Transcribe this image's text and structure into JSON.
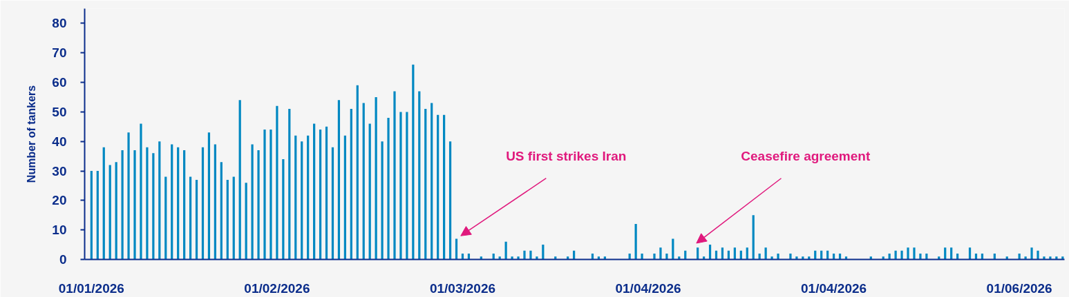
{
  "chart_data": {
    "type": "bar",
    "ylabel": "Number of tankers",
    "categories": [
      "01/01/2026",
      null,
      null,
      null,
      null,
      null,
      null,
      null,
      null,
      null,
      null,
      null,
      null,
      null,
      null,
      null,
      null,
      null,
      null,
      null,
      null,
      null,
      null,
      null,
      null,
      null,
      null,
      null,
      null,
      null,
      "01/02/2026",
      null,
      null,
      null,
      null,
      null,
      null,
      null,
      null,
      null,
      null,
      null,
      null,
      null,
      null,
      null,
      null,
      null,
      null,
      null,
      null,
      null,
      null,
      null,
      null,
      null,
      null,
      null,
      null,
      null,
      "01/03/2026",
      null,
      null,
      null,
      null,
      null,
      null,
      null,
      null,
      null,
      null,
      null,
      null,
      null,
      null,
      null,
      null,
      null,
      null,
      null,
      null,
      null,
      null,
      null,
      null,
      null,
      null,
      null,
      null,
      null,
      "01/04/2026",
      null,
      null,
      null,
      null,
      null,
      null,
      null,
      null,
      null,
      null,
      null,
      null,
      null,
      null,
      null,
      null,
      null,
      null,
      null,
      null,
      null,
      null,
      null,
      null,
      null,
      null,
      null,
      null,
      null,
      "01/04/2026",
      null,
      null,
      null,
      null,
      null,
      null,
      null,
      null,
      null,
      null,
      null,
      null,
      null,
      null,
      null,
      null,
      null,
      null,
      null,
      null,
      null,
      null,
      null,
      null,
      null,
      null,
      null,
      null,
      null,
      "01/06/2026",
      null,
      null,
      null,
      null,
      null,
      null,
      null
    ],
    "values": [
      30,
      30,
      38,
      32,
      33,
      37,
      43,
      37,
      46,
      38,
      36,
      40,
      28,
      39,
      38,
      37,
      28,
      27,
      38,
      43,
      39,
      33,
      27,
      28,
      54,
      26,
      39,
      37,
      44,
      44,
      52,
      34,
      51,
      42,
      40,
      42,
      46,
      44,
      45,
      38,
      54,
      42,
      51,
      59,
      53,
      46,
      55,
      40,
      48,
      57,
      50,
      50,
      66,
      57,
      51,
      53,
      49,
      49,
      40,
      7,
      2,
      2,
      0,
      1,
      0,
      2,
      1,
      6,
      1,
      1,
      3,
      3,
      1,
      5,
      0,
      1,
      0,
      1,
      3,
      0,
      0,
      2,
      1,
      1,
      0,
      0,
      0,
      2,
      12,
      2,
      0,
      2,
      4,
      2,
      7,
      1,
      3,
      0,
      4,
      1,
      5,
      3,
      4,
      3,
      4,
      3,
      4,
      15,
      2,
      4,
      1,
      2,
      0,
      2,
      1,
      1,
      1,
      3,
      3,
      3,
      2,
      2,
      1,
      0,
      0,
      0,
      1,
      0,
      1,
      2,
      3,
      3,
      4,
      4,
      2,
      2,
      0,
      1,
      4,
      4,
      2,
      0,
      4,
      2,
      2,
      0,
      2,
      0,
      1,
      0,
      2,
      1,
      4,
      3,
      1,
      1,
      1,
      1
    ],
    "color": "#0088c2",
    "ylim": [
      0,
      85
    ],
    "yticks": [
      0,
      10,
      20,
      30,
      40,
      50,
      60,
      70,
      80
    ],
    "annotations": [
      "US first strikes Iran",
      "Ceasefire agreement"
    ]
  }
}
